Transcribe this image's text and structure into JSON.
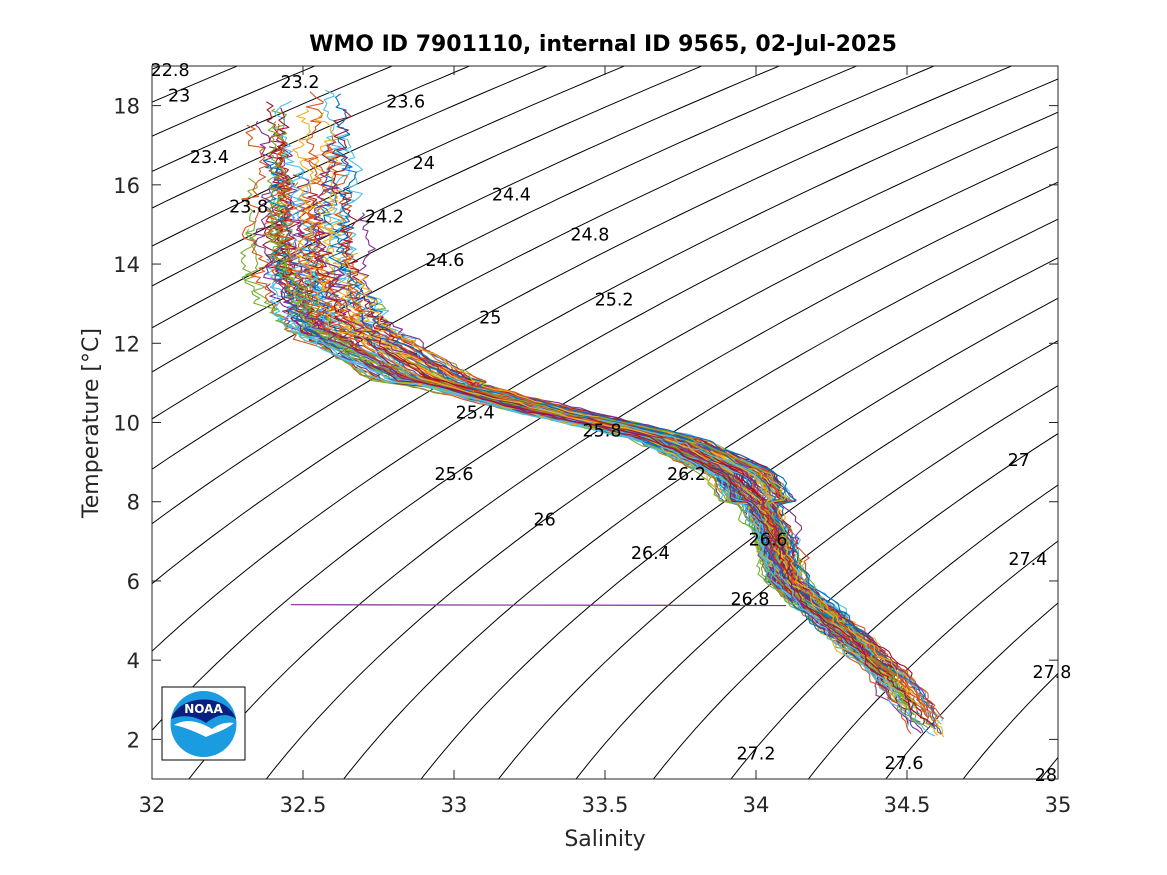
{
  "chart_data": {
    "type": "scatter",
    "title": "WMO ID 7901110, internal ID 9565, 02-Jul-2025",
    "xlabel": "Salinity",
    "ylabel": "Temperature [°C]",
    "xlim": [
      32,
      35
    ],
    "ylim": [
      1,
      19
    ],
    "xticks": [
      "32",
      "32.5",
      "33",
      "33.5",
      "34",
      "34.5",
      "35"
    ],
    "yticks": [
      "2",
      "4",
      "6",
      "8",
      "10",
      "12",
      "14",
      "16",
      "18"
    ],
    "density_contours": [
      {
        "label": "22.8",
        "s": 32.06,
        "t": 18.9
      },
      {
        "label": "23",
        "s": 32.09,
        "t": 18.25
      },
      {
        "label": "23.2",
        "s": 32.49,
        "t": 18.6
      },
      {
        "label": "23.4",
        "s": 32.19,
        "t": 16.7
      },
      {
        "label": "23.6",
        "s": 32.84,
        "t": 18.1
      },
      {
        "label": "23.8",
        "s": 32.32,
        "t": 15.45
      },
      {
        "label": "24",
        "s": 32.9,
        "t": 16.55
      },
      {
        "label": "24.2",
        "s": 32.77,
        "t": 15.2
      },
      {
        "label": "24.4",
        "s": 33.19,
        "t": 15.75
      },
      {
        "label": "24.6",
        "s": 32.97,
        "t": 14.1
      },
      {
        "label": "24.8",
        "s": 33.45,
        "t": 14.75
      },
      {
        "label": "25",
        "s": 33.12,
        "t": 12.65
      },
      {
        "label": "25.2",
        "s": 33.53,
        "t": 13.1
      },
      {
        "label": "25.4",
        "s": 33.07,
        "t": 10.25
      },
      {
        "label": "25.6",
        "s": 33.0,
        "t": 8.7
      },
      {
        "label": "25.8",
        "s": 33.49,
        "t": 9.8
      },
      {
        "label": "26",
        "s": 33.3,
        "t": 7.55
      },
      {
        "label": "26.2",
        "s": 33.77,
        "t": 8.7
      },
      {
        "label": "26.4",
        "s": 33.65,
        "t": 6.7
      },
      {
        "label": "26.6",
        "s": 34.04,
        "t": 7.05
      },
      {
        "label": "26.8",
        "s": 33.98,
        "t": 5.55
      },
      {
        "label": "27",
        "s": 34.87,
        "t": 9.05
      },
      {
        "label": "27.2",
        "s": 34.0,
        "t": 1.65
      },
      {
        "label": "27.4",
        "s": 34.9,
        "t": 6.55
      },
      {
        "label": "27.6",
        "s": 34.49,
        "t": 1.4
      },
      {
        "label": "27.8",
        "s": 34.98,
        "t": 3.7
      },
      {
        "label": "28",
        "s": 34.96,
        "t": 1.1
      }
    ],
    "profile_envelope": [
      {
        "s": 32.47,
        "t": 18.4
      },
      {
        "s": 32.5,
        "t": 16.0
      },
      {
        "s": 32.5,
        "t": 14.0
      },
      {
        "s": 32.6,
        "t": 12.4
      },
      {
        "s": 32.9,
        "t": 11.1
      },
      {
        "s": 33.3,
        "t": 10.3
      },
      {
        "s": 33.7,
        "t": 9.6
      },
      {
        "s": 33.95,
        "t": 8.7
      },
      {
        "s": 34.05,
        "t": 7.3
      },
      {
        "s": 34.1,
        "t": 6.0
      },
      {
        "s": 34.25,
        "t": 5.0
      },
      {
        "s": 34.45,
        "t": 3.6
      },
      {
        "s": 34.6,
        "t": 2.0
      }
    ],
    "profile_count_visible": "many (≈120 colored profiles)",
    "outlier_profile": {
      "s_start": 32.46,
      "s_end": 34.1,
      "t": 5.4,
      "color": "#7E2F8E"
    },
    "series_colors": [
      "#0072BD",
      "#D95319",
      "#EDB120",
      "#7E2F8E",
      "#77AC30",
      "#4DBEEE",
      "#A2142F"
    ],
    "grid": false
  },
  "logo": {
    "name": "NOAA",
    "text": "NOAA"
  }
}
